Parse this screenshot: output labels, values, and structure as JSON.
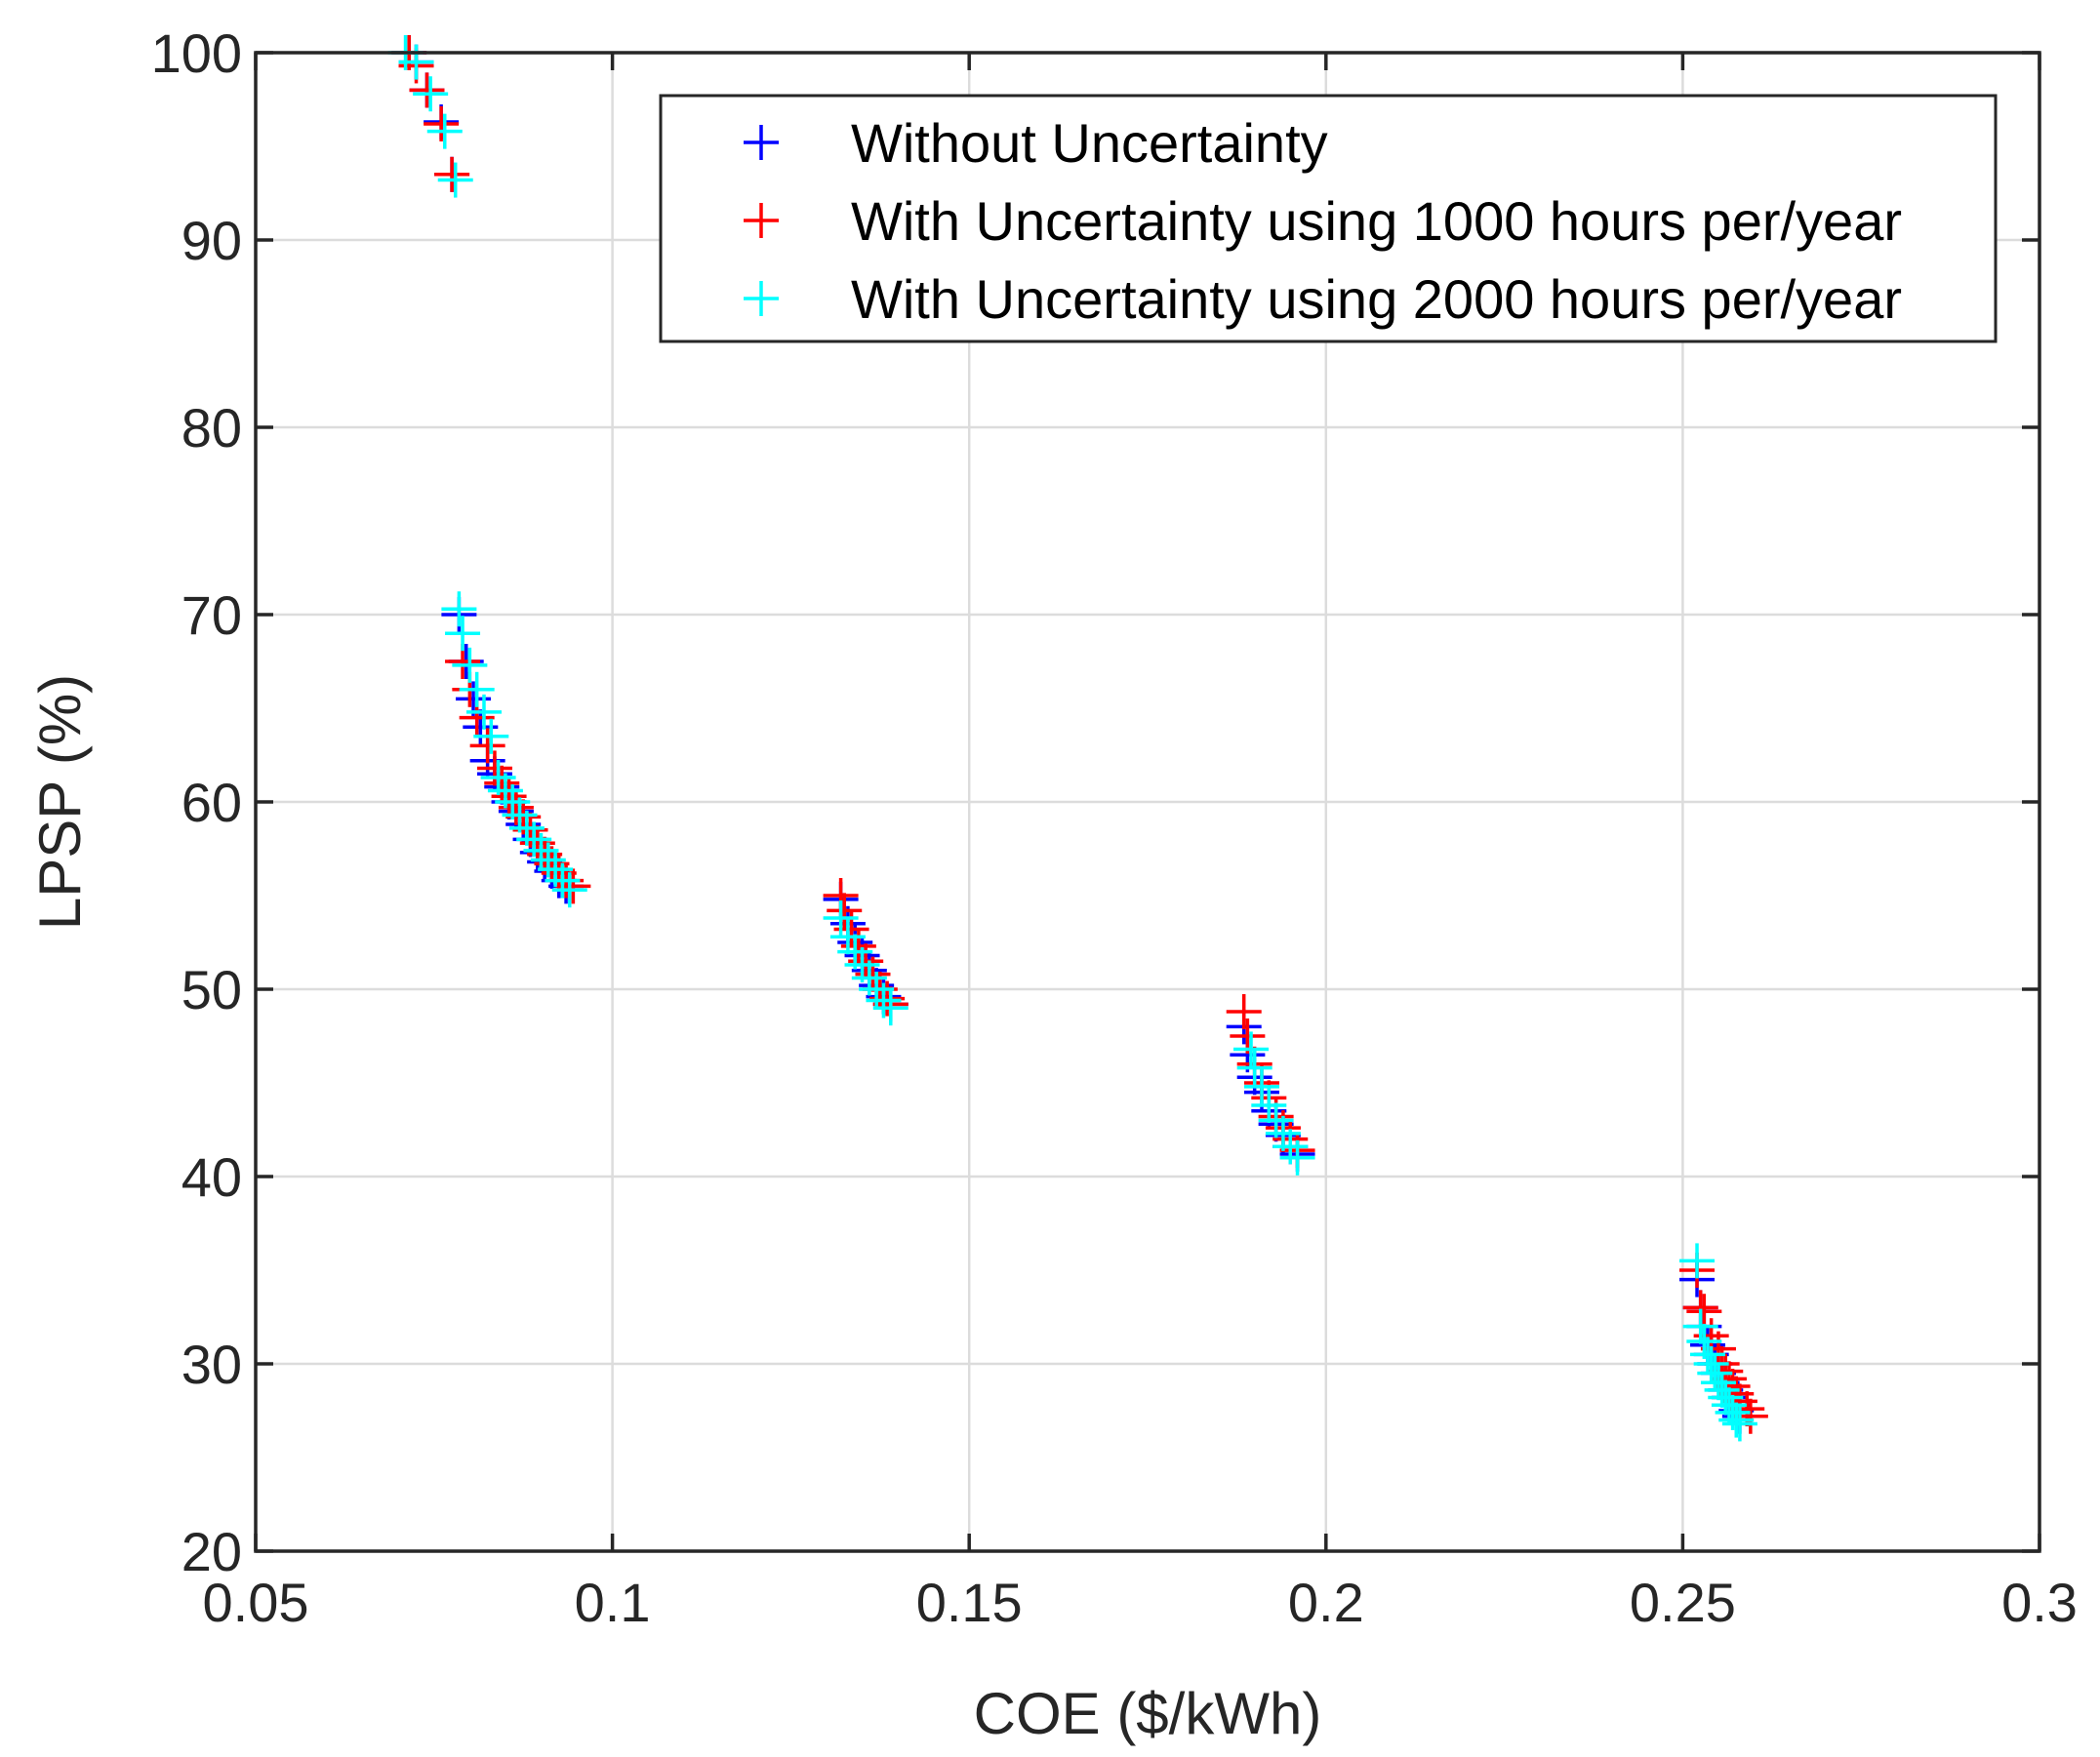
{
  "chart_data": {
    "type": "scatter",
    "title": "",
    "xlabel": "COE ($/kWh)",
    "ylabel": "LPSP (%)",
    "xlim": [
      0.05,
      0.3
    ],
    "ylim": [
      20,
      100
    ],
    "xticks": [
      0.05,
      0.1,
      0.15,
      0.2,
      0.25,
      0.3
    ],
    "xtick_labels": [
      "0.05",
      "0.1",
      "0.15",
      "0.2",
      "0.25",
      "0.3"
    ],
    "yticks": [
      20,
      30,
      40,
      50,
      60,
      70,
      80,
      90,
      100
    ],
    "ytick_labels": [
      "20",
      "30",
      "40",
      "50",
      "60",
      "70",
      "80",
      "90",
      "100"
    ],
    "grid": true,
    "legend_position": "top-right",
    "marker": "+",
    "series": [
      {
        "name": "Without Uncertainty",
        "color": "#0000ff",
        "x": [
          0.0715,
          0.0725,
          0.074,
          0.076,
          0.0775,
          0.0785,
          0.0795,
          0.0805,
          0.0815,
          0.0825,
          0.0835,
          0.0845,
          0.0855,
          0.0865,
          0.0875,
          0.0885,
          0.0895,
          0.0905,
          0.0915,
          0.0925,
          0.0935,
          0.132,
          0.133,
          0.134,
          0.135,
          0.136,
          0.137,
          0.138,
          0.139,
          0.1885,
          0.189,
          0.19,
          0.191,
          0.192,
          0.193,
          0.194,
          0.195,
          0.196,
          0.252,
          0.2525,
          0.253,
          0.2535,
          0.254,
          0.2545,
          0.255,
          0.2555,
          0.256,
          0.2565,
          0.257,
          0.2575,
          0.258
        ],
        "y": [
          100,
          99.5,
          98,
          96.3,
          93.5,
          70,
          67.5,
          65.5,
          64,
          62.2,
          61.5,
          60.8,
          60,
          59.5,
          58.8,
          58,
          57.3,
          56.8,
          56.3,
          55.8,
          55.5,
          54.8,
          53.5,
          52.5,
          51.8,
          51,
          50.2,
          49.6,
          49.2,
          48,
          46.5,
          45.3,
          44.5,
          43.5,
          42.8,
          42.2,
          41.6,
          41.2,
          34.5,
          33,
          32,
          31,
          30.5,
          30,
          29.5,
          29,
          28.6,
          28.2,
          27.8,
          27.5,
          27.2
        ]
      },
      {
        "name": "With Uncertainty using 1000 hours per/year",
        "color": "#ff0000",
        "x": [
          0.0715,
          0.0725,
          0.074,
          0.076,
          0.0775,
          0.079,
          0.08,
          0.081,
          0.0825,
          0.0835,
          0.0845,
          0.0855,
          0.0865,
          0.0875,
          0.0885,
          0.0895,
          0.0905,
          0.0915,
          0.0925,
          0.0935,
          0.0945,
          0.132,
          0.1325,
          0.1335,
          0.1345,
          0.1355,
          0.1365,
          0.1375,
          0.1385,
          0.139,
          0.1885,
          0.189,
          0.19,
          0.191,
          0.192,
          0.193,
          0.194,
          0.195,
          0.196,
          0.252,
          0.2525,
          0.253,
          0.254,
          0.255,
          0.2555,
          0.256,
          0.2565,
          0.257,
          0.2575,
          0.258,
          0.259,
          0.2595
        ],
        "y": [
          100,
          99.3,
          98,
          96.2,
          93.5,
          67.5,
          66,
          64.5,
          63,
          61.8,
          61,
          60.3,
          59.7,
          59.2,
          58.5,
          57.8,
          57.2,
          56.7,
          56.2,
          55.8,
          55.5,
          55,
          54.2,
          53.2,
          52.3,
          51.5,
          50.8,
          50,
          49.5,
          49.2,
          48.8,
          47.5,
          46,
          45,
          44.2,
          43.2,
          42.6,
          42,
          41.4,
          35,
          33,
          32.8,
          31.5,
          30.8,
          30,
          29.6,
          29.2,
          28.8,
          28.4,
          28,
          27.6,
          27.2
        ]
      },
      {
        "name": "With Uncertainty using 2000 hours per/year",
        "color": "#00ffff",
        "x": [
          0.071,
          0.0725,
          0.0745,
          0.0765,
          0.078,
          0.0785,
          0.079,
          0.08,
          0.081,
          0.082,
          0.083,
          0.084,
          0.085,
          0.086,
          0.087,
          0.088,
          0.089,
          0.09,
          0.091,
          0.092,
          0.093,
          0.094,
          0.132,
          0.133,
          0.134,
          0.135,
          0.136,
          0.137,
          0.138,
          0.139,
          0.1895,
          0.19,
          0.191,
          0.192,
          0.193,
          0.194,
          0.195,
          0.196,
          0.252,
          0.2525,
          0.253,
          0.2535,
          0.254,
          0.2545,
          0.255,
          0.2555,
          0.256,
          0.2565,
          0.257,
          0.2575,
          0.258
        ],
        "y": [
          100,
          99.5,
          97.8,
          95.8,
          93.2,
          70.3,
          69,
          67.3,
          66,
          64.8,
          63.5,
          61.3,
          60.6,
          60,
          59.3,
          58.6,
          58,
          57.4,
          56.9,
          56.4,
          55.8,
          55.3,
          53.8,
          52.8,
          52,
          51.3,
          50.6,
          50,
          49.4,
          49,
          46.8,
          45.8,
          44.8,
          43.8,
          43,
          42.3,
          41.6,
          41,
          35.5,
          32,
          31.2,
          30.5,
          30,
          29.5,
          29,
          28.6,
          28.2,
          27.8,
          27.4,
          27,
          26.8
        ]
      }
    ]
  }
}
